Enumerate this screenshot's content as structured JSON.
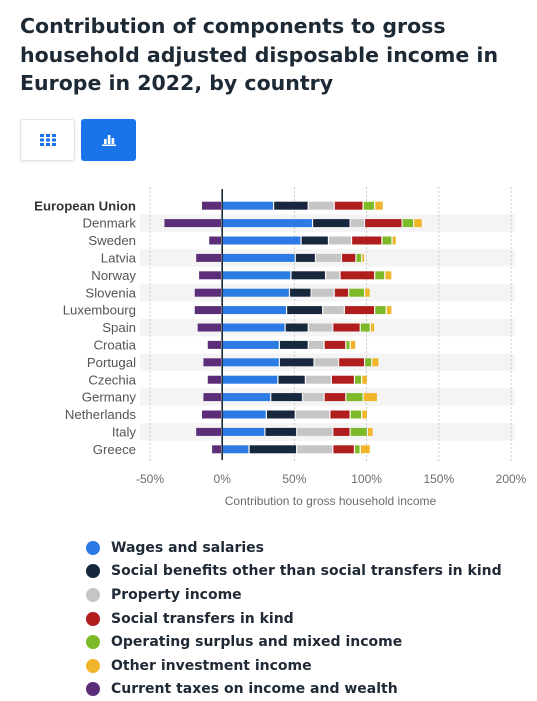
{
  "title": "Contribution of components to gross household adjusted disposable income in Europe in 2022, by country",
  "view_buttons": {
    "table_icon": "grid-icon",
    "chart_icon": "bar-chart-icon",
    "active": "chart"
  },
  "colors": {
    "wages": "#2c7be5",
    "social_benefits": "#17273d",
    "property": "#c5c5c5",
    "social_transfers": "#b01d1d",
    "operating_surplus": "#7dba2a",
    "other_investment": "#f0b52a",
    "taxes": "#5c2e7a"
  },
  "chart_data": {
    "type": "bar",
    "orientation": "horizontal",
    "stacked": true,
    "categories": [
      "European Union",
      "Denmark",
      "Sweden",
      "Latvia",
      "Norway",
      "Slovenia",
      "Luxembourg",
      "Spain",
      "Croatia",
      "Portugal",
      "Czechia",
      "Germany",
      "Netherlands",
      "Italy",
      "Greece"
    ],
    "highlight_category": "European Union",
    "xlabel": "Contribution to gross household income",
    "xlim": [
      -50,
      200
    ],
    "xticks": [
      "-50%",
      "0%",
      "50%",
      "100%",
      "150%",
      "200%"
    ],
    "xtick_values": [
      -50,
      0,
      50,
      100,
      150,
      200
    ],
    "grid": "vertical dotted",
    "legend_position": "bottom",
    "series": [
      {
        "name": "Wages and salaries",
        "color_key": "wages",
        "values": [
          36,
          63,
          55,
          51,
          48,
          47,
          45,
          44,
          40,
          40,
          39,
          34,
          31,
          30,
          19
        ]
      },
      {
        "name": "Social benefits other than social transfers in kind",
        "color_key": "social_benefits",
        "values": [
          24,
          26,
          19,
          14,
          24,
          15,
          25,
          16,
          20,
          24,
          19,
          22,
          20,
          22,
          33
        ]
      },
      {
        "name": "Property income",
        "color_key": "property",
        "values": [
          18,
          10,
          16,
          18,
          10,
          16,
          15,
          17,
          11,
          17,
          18,
          15,
          24,
          25,
          25
        ]
      },
      {
        "name": "Social transfers in kind",
        "color_key": "social_transfers",
        "values": [
          20,
          26,
          21,
          10,
          24,
          10,
          21,
          19,
          15,
          18,
          16,
          15,
          14,
          12,
          15
        ]
      },
      {
        "name": "Operating surplus and mixed income",
        "color_key": "operating_surplus",
        "values": [
          8,
          8,
          7,
          4,
          7,
          11,
          8,
          7,
          3,
          5,
          5,
          12,
          8,
          12,
          4
        ]
      },
      {
        "name": "Other investment income",
        "color_key": "other_investment",
        "values": [
          6,
          6,
          3,
          2,
          5,
          4,
          4,
          3,
          4,
          5,
          4,
          10,
          4,
          4,
          7
        ]
      },
      {
        "name": "Current taxes on income and wealth",
        "color_key": "taxes",
        "values": [
          -14,
          -40,
          -9,
          -18,
          -16,
          -19,
          -19,
          -17,
          -10,
          -13,
          -10,
          -13,
          -14,
          -18,
          -7
        ]
      }
    ]
  }
}
